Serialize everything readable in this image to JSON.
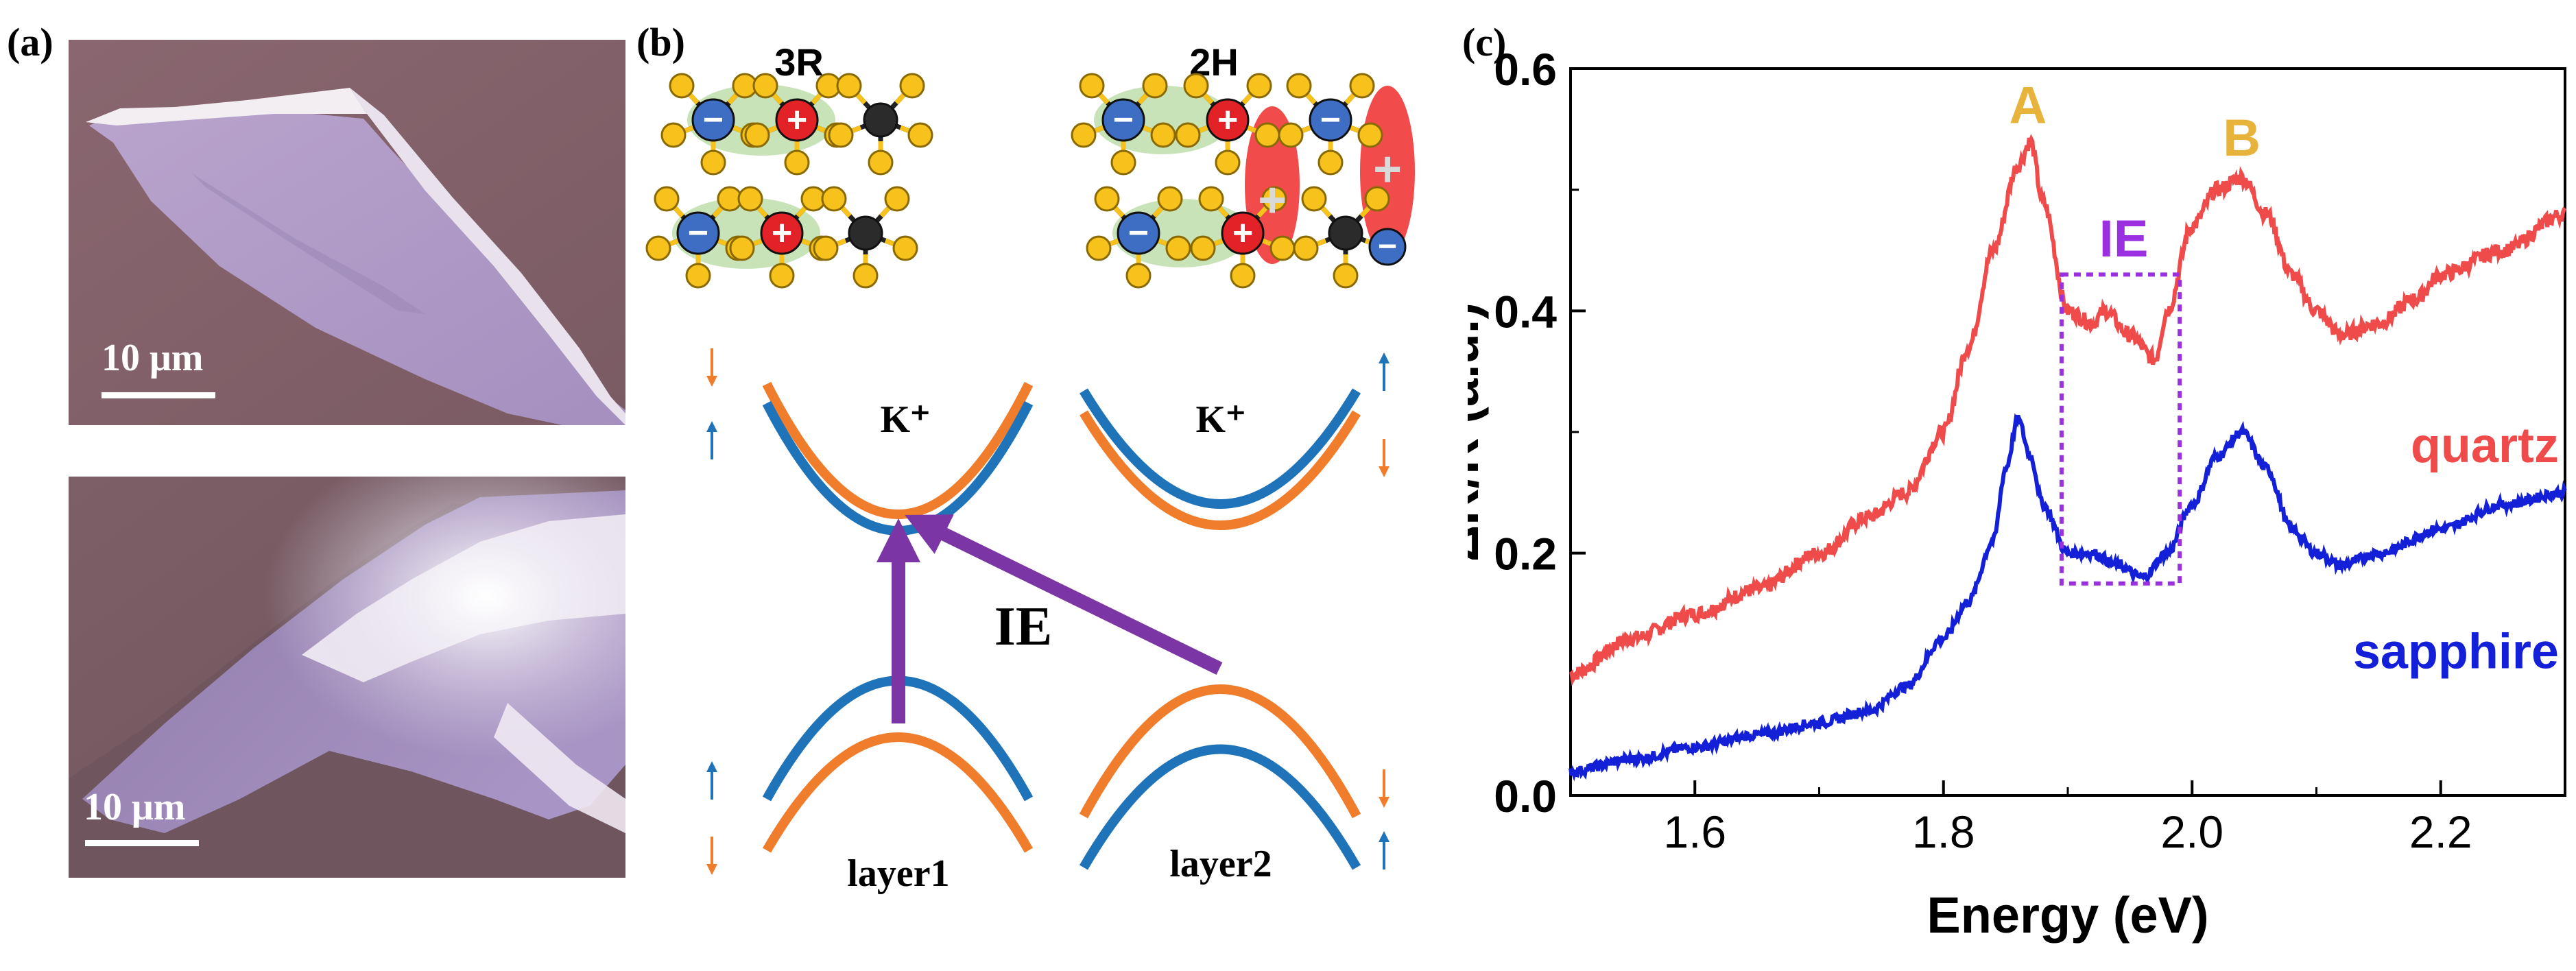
{
  "panels": {
    "a": "(a)",
    "b": "(b)",
    "c": "(c)"
  },
  "panel_a": {
    "top_scale": "10 μm",
    "bottom_scale": "10 μm"
  },
  "panel_b": {
    "stack_3r": "3R",
    "stack_2h": "2H",
    "valley_left": "K⁺",
    "valley_right": "K⁺",
    "transition": "IE",
    "layer1": "layer1",
    "layer2": "layer2",
    "minus_sign": "−",
    "plus_sign": "+",
    "colors": {
      "layer1_band": "#ef7d2c",
      "layer2_band": "#1f73b8",
      "transition_arrow": "#7b35a5",
      "metal_atom": "#f6c21b",
      "chalcogen_atom": "#222222",
      "electron": "#3d6ec4",
      "hole": "#e32227",
      "exciton_cloud": "#9ccc7f",
      "ie_cloud": "#ef2b2b"
    }
  },
  "chart_data": {
    "type": "line",
    "xlabel": "Energy (eV)",
    "ylabel": "ΔR/R (a.u.)",
    "xlim": [
      1.5,
      2.3
    ],
    "ylim": [
      0.0,
      0.6
    ],
    "x_ticks": [
      "1.6",
      "1.8",
      "2.0",
      "2.2"
    ],
    "y_ticks": [
      "0.0",
      "0.2",
      "0.4",
      "0.6"
    ],
    "grid": false,
    "annotations": {
      "peak_a": "A",
      "peak_b": "B",
      "ie_box": "IE"
    },
    "series": [
      {
        "name": "quartz",
        "color": "#ef4b4b",
        "x": [
          1.5,
          1.55,
          1.6,
          1.65,
          1.7,
          1.74,
          1.77,
          1.8,
          1.82,
          1.84,
          1.86,
          1.87,
          1.88,
          1.9,
          1.92,
          1.93,
          1.95,
          1.97,
          1.98,
          2.0,
          2.02,
          2.04,
          2.06,
          2.08,
          2.1,
          2.12,
          2.15,
          2.18,
          2.2,
          2.25,
          2.3
        ],
        "y": [
          0.1,
          0.13,
          0.15,
          0.17,
          0.2,
          0.23,
          0.25,
          0.3,
          0.37,
          0.45,
          0.52,
          0.54,
          0.49,
          0.4,
          0.39,
          0.4,
          0.38,
          0.36,
          0.4,
          0.47,
          0.5,
          0.51,
          0.48,
          0.43,
          0.4,
          0.38,
          0.39,
          0.41,
          0.43,
          0.45,
          0.48
        ]
      },
      {
        "name": "sapphire",
        "color": "#1420d8",
        "x": [
          1.5,
          1.55,
          1.6,
          1.65,
          1.7,
          1.74,
          1.77,
          1.8,
          1.82,
          1.84,
          1.85,
          1.86,
          1.87,
          1.88,
          1.9,
          1.92,
          1.94,
          1.96,
          1.98,
          2.0,
          2.02,
          2.04,
          2.06,
          2.08,
          2.1,
          2.12,
          2.15,
          2.2,
          2.25,
          2.3
        ],
        "y": [
          0.02,
          0.03,
          0.04,
          0.05,
          0.06,
          0.07,
          0.09,
          0.13,
          0.16,
          0.21,
          0.27,
          0.31,
          0.28,
          0.24,
          0.2,
          0.2,
          0.19,
          0.18,
          0.2,
          0.24,
          0.28,
          0.3,
          0.27,
          0.22,
          0.2,
          0.19,
          0.2,
          0.22,
          0.24,
          0.25
        ]
      }
    ],
    "ie_box_range": {
      "x": [
        1.895,
        1.99
      ],
      "y": [
        0.175,
        0.43
      ]
    }
  }
}
